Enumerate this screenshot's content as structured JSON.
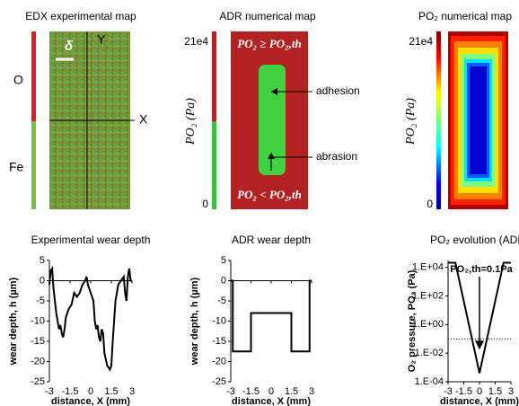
{
  "maps": [
    {
      "title": "EDX experimental map",
      "top_label": "O",
      "bottom_label": "Fe",
      "delta": "δ",
      "y_axis": "Y",
      "x_axis": "X"
    },
    {
      "title": "ADR numerical map",
      "cbar_max": "21e4",
      "cbar_min": "0",
      "ylabel": "PO₂ (Pa)",
      "upper": "PO₂ ≥ PO₂,th",
      "lower": "PO₂ < PO₂,th",
      "adhesion": "adhesion",
      "abrasion": "abrasion"
    },
    {
      "title": "PO₂ numerical map",
      "cbar_max": "21e4",
      "cbar_min": "0",
      "ylabel": "PO₂ (Pa)"
    }
  ],
  "chart_data": [
    {
      "type": "line",
      "title": "Experimental wear depth",
      "ylabel": "wear depth, h (µm)",
      "xlabel": "distance, X (mm)",
      "xlim": [
        -3,
        3
      ],
      "xticks": [
        -3,
        -1.5,
        0,
        1.5,
        3
      ],
      "ylim": [
        -25,
        5
      ],
      "yticks": [
        5,
        0,
        -5,
        -10,
        -15,
        -20,
        -25
      ],
      "color": "#000000",
      "x": [
        -3,
        -2.9,
        -2.8,
        -2.7,
        -2.6,
        -2.5,
        -2.4,
        -2.3,
        -2.2,
        -2.1,
        -2.0,
        -1.9,
        -1.8,
        -1.6,
        -1.4,
        -1.2,
        -1.0,
        -0.8,
        -0.6,
        -0.4,
        -0.3,
        -0.2,
        0,
        0.2,
        0.3,
        0.4,
        0.5,
        0.6,
        0.7,
        0.8,
        0.9,
        1.0,
        1.2,
        1.4,
        1.5,
        1.6,
        1.7,
        1.8,
        2.0,
        2.2,
        2.4,
        2.5,
        2.6,
        2.7,
        2.8,
        2.9,
        3
      ],
      "values": [
        -1,
        2.5,
        3,
        -2,
        -5,
        -8,
        -10,
        -12,
        -11,
        -13,
        -14,
        -12,
        -9,
        -7,
        -6,
        -3,
        -4,
        -3,
        -1,
        0,
        1,
        -1,
        -3,
        -5,
        -10,
        -12,
        -11,
        -14,
        -15,
        -12,
        -13,
        -18,
        -21,
        -22,
        -21,
        -15,
        -10,
        -5,
        -1,
        0,
        1,
        -3,
        -5,
        1,
        3,
        0,
        0
      ]
    },
    {
      "type": "line",
      "title": "ADR wear depth",
      "ylabel": "wear depth, h (µm)",
      "xlabel": "distance, X (mm)",
      "xlim": [
        -3,
        3
      ],
      "xticks": [
        -3,
        -1.5,
        0,
        1.5,
        3
      ],
      "ylim": [
        -25,
        5
      ],
      "yticks": [
        5,
        0,
        -5,
        -10,
        -15,
        -20,
        -25
      ],
      "color": "#000000",
      "x": [
        -3,
        -2.85,
        -2.85,
        -1.5,
        -1.5,
        1.5,
        1.5,
        2.85,
        2.85,
        3
      ],
      "values": [
        0,
        0,
        -17.5,
        -17.5,
        -8,
        -8,
        -17.5,
        -17.5,
        0,
        0
      ]
    },
    {
      "type": "line",
      "title": "PO₂ evolution (ADR)",
      "ylabel": "O₂ pressure, PO₂ (Pa)",
      "xlabel": "distance, X (mm)",
      "log_y": true,
      "xlim": [
        -3,
        3
      ],
      "xticks": [
        -3,
        -1.5,
        0,
        1.5,
        3
      ],
      "ylim": [
        0.0001,
        30000
      ],
      "yticks": [
        {
          "value": 10000,
          "label": "1.E+04"
        },
        {
          "value": 100,
          "label": "1.E+02"
        },
        {
          "value": 1,
          "label": "1.E+00"
        },
        {
          "value": 0.01,
          "label": "1.E-02"
        },
        {
          "value": 0.0001,
          "label": "1.E-04"
        }
      ],
      "color": "#000000",
      "threshold": 0.1,
      "annotation": "PO₂,th=0.1Pa",
      "x": [
        -3,
        -2.3,
        0,
        2.3,
        3
      ],
      "values": [
        21000,
        21000,
        0.0004,
        21000,
        21000
      ]
    }
  ]
}
